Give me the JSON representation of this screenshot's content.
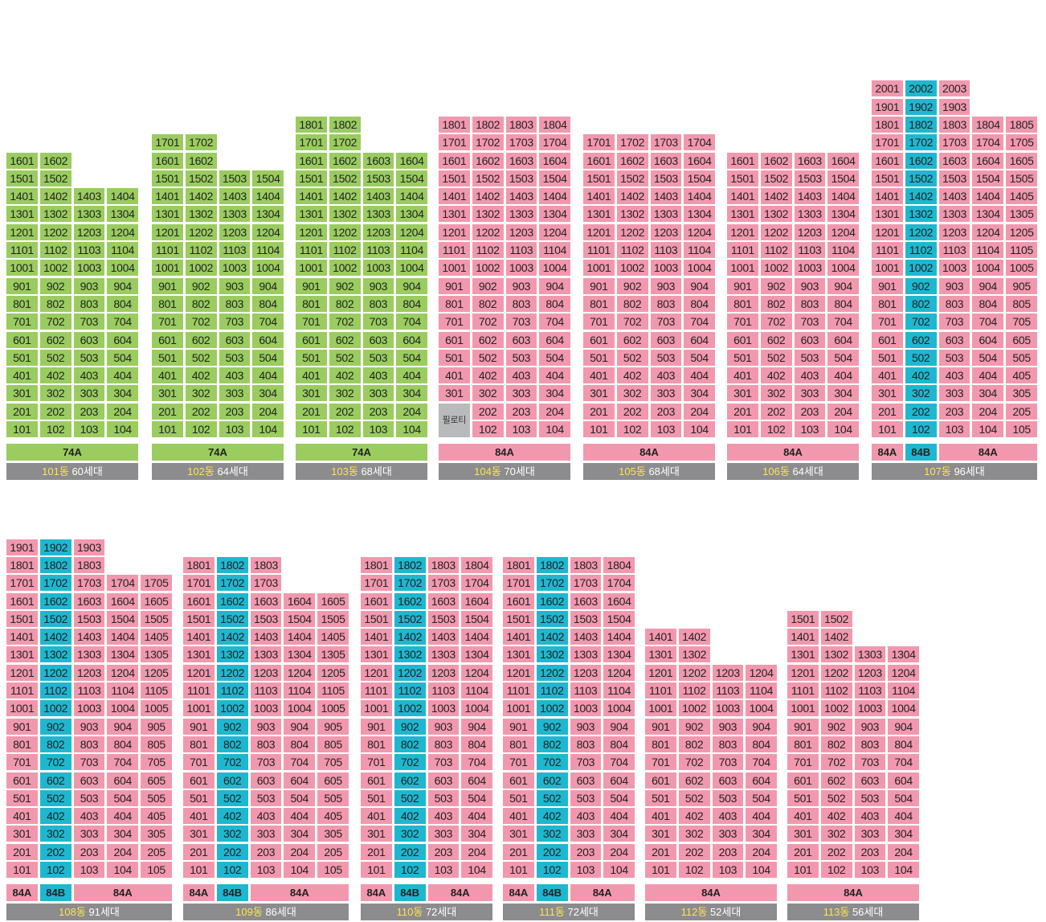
{
  "colors": {
    "type_74A": "#9acc5f",
    "type_84A": "#f298ae",
    "type_84B": "#1fb7d0",
    "piloti": "#b9babb",
    "label_bar": "#8c8c8e",
    "dong_text": "#ffe44d"
  },
  "buildings": [
    {
      "dong": "101동",
      "households": "60세대",
      "col_floors": [
        16,
        16,
        14,
        14
      ],
      "col_colors": [
        "g",
        "g",
        "g",
        "g"
      ],
      "types": [
        {
          "label": "74A",
          "span": 4,
          "color": "g"
        }
      ]
    },
    {
      "dong": "102동",
      "households": "64세대",
      "col_floors": [
        17,
        17,
        15,
        15
      ],
      "col_colors": [
        "g",
        "g",
        "g",
        "g"
      ],
      "types": [
        {
          "label": "74A",
          "span": 4,
          "color": "g"
        }
      ]
    },
    {
      "dong": "103동",
      "households": "68세대",
      "col_floors": [
        18,
        18,
        16,
        16
      ],
      "col_colors": [
        "g",
        "g",
        "g",
        "g"
      ],
      "types": [
        {
          "label": "74A",
          "span": 4,
          "color": "g"
        }
      ]
    },
    {
      "dong": "104동",
      "households": "70세대",
      "col_floors": [
        18,
        18,
        18,
        18
      ],
      "col_colors": [
        "p",
        "p",
        "p",
        "p"
      ],
      "piloti": {
        "col": 0,
        "label": "필로티"
      },
      "types": [
        {
          "label": "84A",
          "span": 4,
          "color": "p"
        }
      ]
    },
    {
      "dong": "105동",
      "households": "68세대",
      "col_floors": [
        17,
        17,
        17,
        17
      ],
      "col_colors": [
        "p",
        "p",
        "p",
        "p"
      ],
      "types": [
        {
          "label": "84A",
          "span": 4,
          "color": "p"
        }
      ]
    },
    {
      "dong": "106동",
      "households": "64세대",
      "col_floors": [
        16,
        16,
        16,
        16
      ],
      "col_colors": [
        "p",
        "p",
        "p",
        "p"
      ],
      "types": [
        {
          "label": "84A",
          "span": 4,
          "color": "p"
        }
      ]
    },
    {
      "dong": "107동",
      "households": "96세대",
      "col_floors": [
        20,
        20,
        20,
        18,
        18
      ],
      "col_colors": [
        "p",
        "b",
        "p",
        "p",
        "p"
      ],
      "types": [
        {
          "label": "84A",
          "span": 1,
          "color": "p"
        },
        {
          "label": "84B",
          "span": 1,
          "color": "b"
        },
        {
          "label": "84A",
          "span": 3,
          "color": "p"
        }
      ]
    },
    {
      "dong": "108동",
      "households": "91세대",
      "col_floors": [
        19,
        19,
        19,
        17,
        17
      ],
      "col_colors": [
        "p",
        "b",
        "p",
        "p",
        "p"
      ],
      "types": [
        {
          "label": "84A",
          "span": 1,
          "color": "p"
        },
        {
          "label": "84B",
          "span": 1,
          "color": "b"
        },
        {
          "label": "84A",
          "span": 3,
          "color": "p"
        }
      ]
    },
    {
      "dong": "109동",
      "households": "86세대",
      "col_floors": [
        18,
        18,
        18,
        16,
        16
      ],
      "col_colors": [
        "p",
        "b",
        "p",
        "p",
        "p"
      ],
      "types": [
        {
          "label": "84A",
          "span": 1,
          "color": "p"
        },
        {
          "label": "84B",
          "span": 1,
          "color": "b"
        },
        {
          "label": "84A",
          "span": 3,
          "color": "p"
        }
      ]
    },
    {
      "dong": "110동",
      "households": "72세대",
      "col_floors": [
        18,
        18,
        18,
        18
      ],
      "col_colors": [
        "p",
        "b",
        "p",
        "p"
      ],
      "types": [
        {
          "label": "84A",
          "span": 1,
          "color": "p"
        },
        {
          "label": "84B",
          "span": 1,
          "color": "b"
        },
        {
          "label": "84A",
          "span": 2,
          "color": "p"
        }
      ]
    },
    {
      "dong": "111동",
      "households": "72세대",
      "col_floors": [
        18,
        18,
        18,
        18
      ],
      "col_colors": [
        "p",
        "b",
        "p",
        "p"
      ],
      "types": [
        {
          "label": "84A",
          "span": 1,
          "color": "p"
        },
        {
          "label": "84B",
          "span": 1,
          "color": "b"
        },
        {
          "label": "84A",
          "span": 2,
          "color": "p"
        }
      ]
    },
    {
      "dong": "112동",
      "households": "52세대",
      "col_floors": [
        14,
        14,
        12,
        12
      ],
      "col_colors": [
        "p",
        "p",
        "p",
        "p"
      ],
      "types": [
        {
          "label": "84A",
          "span": 4,
          "color": "p"
        }
      ]
    },
    {
      "dong": "113동",
      "households": "56세대",
      "col_floors": [
        15,
        15,
        13,
        13
      ],
      "col_colors": [
        "p",
        "p",
        "p",
        "p"
      ],
      "types": [
        {
          "label": "84A",
          "span": 4,
          "color": "p"
        }
      ]
    }
  ]
}
